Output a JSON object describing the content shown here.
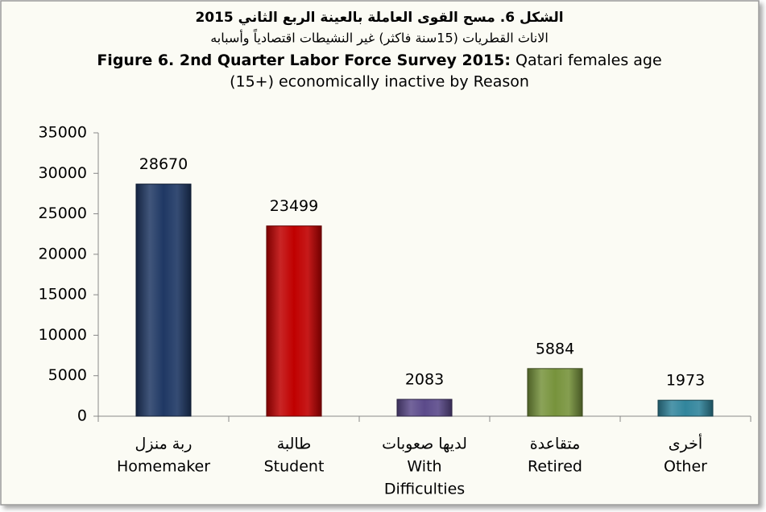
{
  "chart_data": {
    "type": "bar",
    "title_ar": "الشكل 6. مسح القوى العاملة بالعينة الربع الثاني 2015",
    "subtitle_ar": "الاناث القطريات (15سنة فاكثر) غير النشيطات اقتصادياً وأسبابه",
    "title": "Figure 6. 2nd Quarter Labor Force Survey 2015:",
    "subtitle": [
      "Qatari females age",
      "(15+) economically inactive by Reason"
    ],
    "categories": [
      [
        "ربة منزل",
        "Homemaker"
      ],
      [
        "طالبة",
        "Student"
      ],
      [
        "لديها صعوبات",
        "With",
        "Difficulties"
      ],
      [
        "متقاعدة",
        "Retired"
      ],
      [
        "أخرى",
        "Other"
      ]
    ],
    "values": [
      28670,
      23499,
      2083,
      5884,
      1973
    ],
    "colors": [
      "#1f3864",
      "#c00000",
      "#5b4a8a",
      "#77933c",
      "#31859c"
    ],
    "ylim": [
      0,
      35000
    ],
    "yticks": [
      0,
      5000,
      10000,
      15000,
      20000,
      25000,
      30000,
      35000
    ],
    "grid": false
  }
}
